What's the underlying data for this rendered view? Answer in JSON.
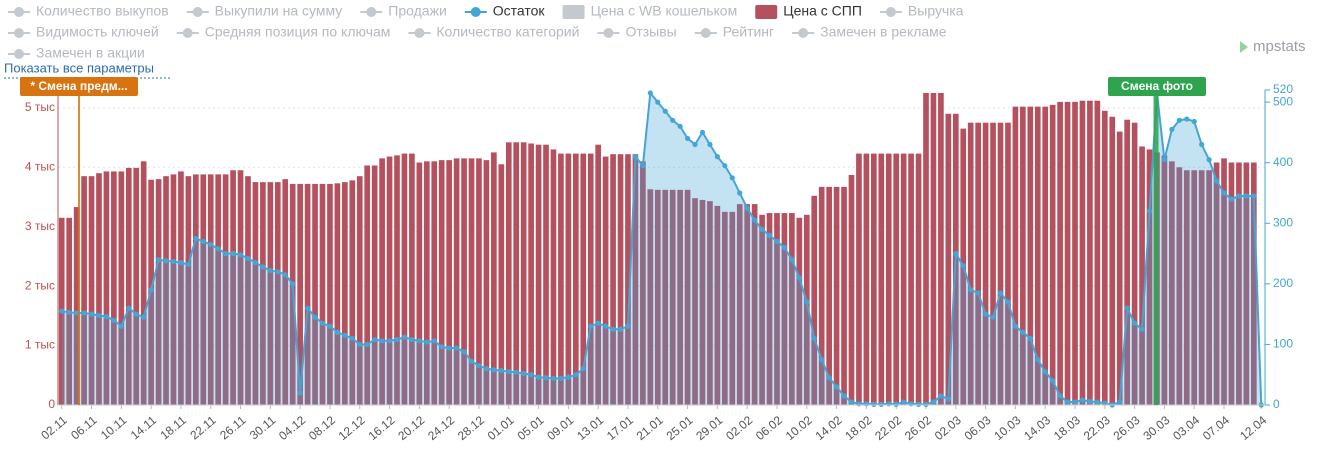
{
  "chart_data": {
    "type": "bar",
    "show_all_link": "Показать все параметры",
    "logo": "mpstats",
    "categories": [
      "02.11",
      null,
      null,
      null,
      "06.11",
      null,
      null,
      null,
      "10.11",
      null,
      null,
      null,
      "14.11",
      null,
      null,
      null,
      "18.11",
      null,
      null,
      null,
      "22.11",
      null,
      null,
      null,
      "26.11",
      null,
      null,
      null,
      "30.11",
      null,
      null,
      null,
      "04.12",
      null,
      null,
      null,
      "08.12",
      null,
      null,
      null,
      "12.12",
      null,
      null,
      null,
      "16.12",
      null,
      null,
      null,
      "20.12",
      null,
      null,
      null,
      "24.12",
      null,
      null,
      null,
      "28.12",
      null,
      null,
      null,
      "01.01",
      null,
      null,
      null,
      "05.01",
      null,
      null,
      null,
      "09.01",
      null,
      null,
      null,
      "13.01",
      null,
      null,
      null,
      "17.01",
      null,
      null,
      null,
      "21.01",
      null,
      null,
      null,
      "25.01",
      null,
      null,
      null,
      "29.01",
      null,
      null,
      null,
      "02.02",
      null,
      null,
      null,
      "06.02",
      null,
      null,
      null,
      "10.02",
      null,
      null,
      null,
      "14.02",
      null,
      null,
      null,
      "18.02",
      null,
      null,
      null,
      "22.02",
      null,
      null,
      null,
      "26.02",
      null,
      null,
      null,
      "02.03",
      null,
      null,
      null,
      "06.03",
      null,
      null,
      null,
      "10.03",
      null,
      null,
      null,
      "14.03",
      null,
      null,
      null,
      "18.03",
      null,
      null,
      null,
      "22.03",
      null,
      null,
      null,
      "26.03",
      null,
      null,
      null,
      "30.03",
      null,
      null,
      null,
      "03.04",
      null,
      null,
      null,
      "07.04",
      null,
      null,
      null,
      null,
      "12.04"
    ],
    "series": [
      {
        "name": "Количество выкупов",
        "visible": false,
        "marker": "line",
        "color": "#c4c9d0"
      },
      {
        "name": "Выкупили на сумму",
        "visible": false,
        "marker": "line",
        "color": "#c4c9d0"
      },
      {
        "name": "Продажи",
        "visible": false,
        "marker": "line",
        "color": "#c4c9d0"
      },
      {
        "name": "Остаток",
        "visible": true,
        "marker": "line",
        "type": "area",
        "axis": "y2",
        "color": "#45a5d6",
        "values": [
          155,
          153,
          152,
          152,
          150,
          148,
          146,
          140,
          130,
          160,
          150,
          145,
          190,
          240,
          238,
          237,
          235,
          232,
          275,
          270,
          265,
          258,
          250,
          250,
          248,
          242,
          235,
          228,
          222,
          220,
          215,
          200,
          20,
          160,
          145,
          135,
          130,
          120,
          115,
          110,
          100,
          100,
          108,
          106,
          106,
          108,
          112,
          108,
          106,
          104,
          106,
          96,
          94,
          94,
          88,
          72,
          65,
          60,
          58,
          57,
          55,
          54,
          52,
          50,
          46,
          45,
          44,
          44,
          46,
          50,
          60,
          130,
          135,
          130,
          125,
          125,
          130,
          410,
          395,
          515,
          500,
          485,
          470,
          460,
          440,
          430,
          450,
          430,
          410,
          395,
          375,
          350,
          325,
          305,
          290,
          280,
          270,
          260,
          240,
          210,
          170,
          110,
          75,
          45,
          30,
          15,
          5,
          2,
          2,
          1,
          1,
          2,
          1,
          5,
          2,
          1,
          1,
          5,
          15,
          10,
          250,
          230,
          190,
          185,
          150,
          145,
          185,
          170,
          130,
          120,
          110,
          75,
          55,
          40,
          15,
          5,
          5,
          8,
          6,
          5,
          3,
          0,
          5,
          160,
          135,
          125,
          320,
          515,
          405,
          455,
          470,
          472,
          468,
          430,
          405,
          370,
          350,
          340,
          345,
          345,
          345,
          0
        ]
      },
      {
        "name": "Цена с WB кошельком",
        "visible": false,
        "marker": "box",
        "color": "#d3d7dc"
      },
      {
        "name": "Цена с СПП",
        "visible": true,
        "marker": "box",
        "type": "bar",
        "color": "#b5505f",
        "values": [
          3150,
          3150,
          3330,
          3850,
          3850,
          3900,
          3930,
          3930,
          3930,
          3990,
          3990,
          4100,
          3790,
          3800,
          3850,
          3880,
          3930,
          3850,
          3880,
          3880,
          3880,
          3880,
          3880,
          3950,
          3950,
          3850,
          3750,
          3750,
          3750,
          3750,
          3800,
          3720,
          3720,
          3720,
          3720,
          3720,
          3720,
          3730,
          3750,
          3780,
          3850,
          4030,
          4030,
          4150,
          4180,
          4200,
          4230,
          4230,
          4080,
          4100,
          4100,
          4120,
          4120,
          4150,
          4150,
          4150,
          4150,
          4120,
          4250,
          4050,
          4420,
          4420,
          4420,
          4400,
          4380,
          4380,
          4300,
          4230,
          4230,
          4230,
          4230,
          4230,
          4380,
          4180,
          4220,
          4220,
          4220,
          4220,
          4100,
          3630,
          3620,
          3620,
          3620,
          3620,
          3620,
          3480,
          3450,
          3430,
          3350,
          3250,
          3250,
          3380,
          3380,
          3380,
          3200,
          3230,
          3230,
          3230,
          3230,
          3150,
          3200,
          3520,
          3670,
          3670,
          3670,
          3670,
          3870,
          4230,
          4230,
          4230,
          4230,
          4230,
          4230,
          4230,
          4230,
          4230,
          5250,
          5250,
          5250,
          4900,
          4900,
          4650,
          4750,
          4750,
          4750,
          4750,
          4750,
          4750,
          5020,
          5020,
          5020,
          5020,
          5020,
          5050,
          5100,
          5100,
          5100,
          5120,
          5120,
          5120,
          4950,
          4850,
          4600,
          4800,
          4750,
          4350,
          4300,
          4250,
          4200,
          4100,
          4000,
          3950,
          3950,
          3950,
          3950,
          4080,
          4150,
          4080,
          4080,
          4080,
          4080,
          null
        ]
      },
      {
        "name": "Выручка",
        "visible": false,
        "marker": "line",
        "color": "#c4c9d0"
      },
      {
        "name": "Видимость ключей",
        "visible": false,
        "marker": "line",
        "color": "#c4c9d0"
      },
      {
        "name": "Средняя позиция по ключам",
        "visible": false,
        "marker": "line",
        "color": "#c4c9d0"
      },
      {
        "name": "Количество категорий",
        "visible": false,
        "marker": "line",
        "color": "#c4c9d0"
      },
      {
        "name": "Отзывы",
        "visible": false,
        "marker": "line",
        "color": "#c4c9d0"
      },
      {
        "name": "Рейтинг",
        "visible": false,
        "marker": "line",
        "color": "#c4c9d0"
      },
      {
        "name": "Замечен в рекламе",
        "visible": false,
        "marker": "line",
        "color": "#c4c9d0"
      },
      {
        "name": "Замечен в акции",
        "visible": false,
        "marker": "line",
        "color": "#c4c9d0"
      }
    ],
    "ylim": [
      0,
      5300
    ],
    "yticks": [
      0,
      {
        "value": 1000,
        "label": "1 тыс"
      },
      {
        "value": 2000,
        "label": "2 тыс"
      },
      {
        "value": 3000,
        "label": "3 тыс"
      },
      {
        "value": 4000,
        "label": "4 тыс"
      },
      {
        "value": 5000,
        "label": "5 тыс"
      }
    ],
    "y2lim": [
      0,
      520
    ],
    "y2ticks": [
      0,
      100,
      200,
      300,
      400,
      500,
      520
    ],
    "grid": true,
    "annotations": [
      {
        "text": "* Смена предм...",
        "color": "#d8740f"
      },
      {
        "text": "Смена фото",
        "color": "#2ea44f"
      }
    ]
  }
}
